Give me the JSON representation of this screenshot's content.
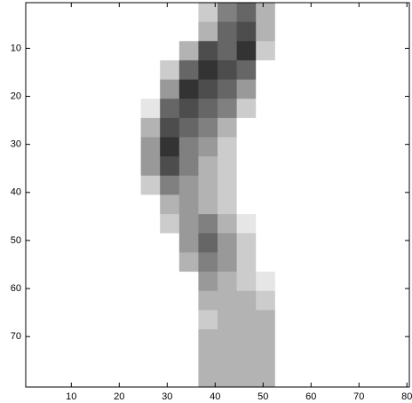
{
  "chart_data": {
    "type": "heatmap",
    "x": [
      2.5,
      6.5,
      10.5,
      14.5,
      18.5,
      22.5,
      26.5,
      30.5,
      34.5,
      38.5,
      42.5,
      46.5,
      50.5,
      54.5,
      58.5,
      62.5,
      66.5,
      70.5,
      74.5,
      78.5
    ],
    "y": [
      2.5,
      6.5,
      10.5,
      14.5,
      18.5,
      22.5,
      26.5,
      30.5,
      34.5,
      38.5,
      42.5,
      46.5,
      50.5,
      54.5,
      58.5,
      62.5,
      66.5,
      70.5,
      74.5,
      78.5
    ],
    "values": [
      [
        0,
        0,
        0,
        0,
        0,
        0,
        0,
        0,
        0,
        0.2,
        0.5,
        0.6,
        0.3,
        0,
        0,
        0,
        0,
        0,
        0,
        0
      ],
      [
        0,
        0,
        0,
        0,
        0,
        0,
        0,
        0,
        0,
        0.3,
        0.6,
        0.7,
        0.3,
        0,
        0,
        0,
        0,
        0,
        0,
        0
      ],
      [
        0,
        0,
        0,
        0,
        0,
        0,
        0,
        0,
        0.3,
        0.7,
        0.6,
        0.8,
        0.2,
        0,
        0,
        0,
        0,
        0,
        0,
        0
      ],
      [
        0,
        0,
        0,
        0,
        0,
        0,
        0,
        0.2,
        0.6,
        0.8,
        0.7,
        0.6,
        0,
        0,
        0,
        0,
        0,
        0,
        0,
        0
      ],
      [
        0,
        0,
        0,
        0,
        0,
        0,
        0,
        0.4,
        0.8,
        0.7,
        0.6,
        0.4,
        0,
        0,
        0,
        0,
        0,
        0,
        0,
        0
      ],
      [
        0,
        0,
        0,
        0,
        0,
        0,
        0.1,
        0.6,
        0.7,
        0.6,
        0.5,
        0.2,
        0,
        0,
        0,
        0,
        0,
        0,
        0,
        0
      ],
      [
        0,
        0,
        0,
        0,
        0,
        0,
        0.3,
        0.7,
        0.6,
        0.5,
        0.3,
        0,
        0,
        0,
        0,
        0,
        0,
        0,
        0,
        0
      ],
      [
        0,
        0,
        0,
        0,
        0,
        0,
        0.4,
        0.8,
        0.5,
        0.4,
        0.2,
        0,
        0,
        0,
        0,
        0,
        0,
        0,
        0,
        0
      ],
      [
        0,
        0,
        0,
        0,
        0,
        0,
        0.4,
        0.7,
        0.5,
        0.3,
        0.2,
        0,
        0,
        0,
        0,
        0,
        0,
        0,
        0,
        0
      ],
      [
        0,
        0,
        0,
        0,
        0,
        0,
        0.2,
        0.5,
        0.4,
        0.3,
        0.2,
        0,
        0,
        0,
        0,
        0,
        0,
        0,
        0,
        0
      ],
      [
        0,
        0,
        0,
        0,
        0,
        0,
        0,
        0.3,
        0.4,
        0.3,
        0.2,
        0,
        0,
        0,
        0,
        0,
        0,
        0,
        0,
        0
      ],
      [
        0,
        0,
        0,
        0,
        0,
        0,
        0,
        0.2,
        0.4,
        0.5,
        0.3,
        0.1,
        0,
        0,
        0,
        0,
        0,
        0,
        0,
        0
      ],
      [
        0,
        0,
        0,
        0,
        0,
        0,
        0,
        0,
        0.4,
        0.6,
        0.4,
        0.2,
        0,
        0,
        0,
        0,
        0,
        0,
        0,
        0
      ],
      [
        0,
        0,
        0,
        0,
        0,
        0,
        0,
        0,
        0.3,
        0.5,
        0.4,
        0.2,
        0,
        0,
        0,
        0,
        0,
        0,
        0,
        0
      ],
      [
        0,
        0,
        0,
        0,
        0,
        0,
        0,
        0,
        0,
        0.4,
        0.3,
        0.2,
        0.1,
        0,
        0,
        0,
        0,
        0,
        0,
        0
      ],
      [
        0,
        0,
        0,
        0,
        0,
        0,
        0,
        0,
        0,
        0.3,
        0.3,
        0.3,
        0.2,
        0,
        0,
        0,
        0,
        0,
        0,
        0
      ],
      [
        0,
        0,
        0,
        0,
        0,
        0,
        0,
        0,
        0,
        0.2,
        0.3,
        0.3,
        0.3,
        0,
        0,
        0,
        0,
        0,
        0,
        0
      ],
      [
        0,
        0,
        0,
        0,
        0,
        0,
        0,
        0,
        0,
        0.3,
        0.3,
        0.3,
        0.3,
        0,
        0,
        0,
        0,
        0,
        0,
        0
      ],
      [
        0,
        0,
        0,
        0,
        0,
        0,
        0,
        0,
        0,
        0.3,
        0.3,
        0.3,
        0.3,
        0,
        0,
        0,
        0,
        0,
        0,
        0
      ],
      [
        0,
        0,
        0,
        0,
        0,
        0,
        0,
        0,
        0,
        0.3,
        0.3,
        0.3,
        0.3,
        0,
        0,
        0,
        0,
        0,
        0,
        0
      ]
    ],
    "colormap": "gray",
    "xlim": [
      0.5,
      80.5
    ],
    "ylim": [
      0.5,
      80.5
    ],
    "y_reversed": true,
    "xticks": [
      10,
      20,
      30,
      40,
      50,
      60,
      70,
      80
    ],
    "yticks": [
      10,
      20,
      30,
      40,
      50,
      60,
      70
    ]
  }
}
